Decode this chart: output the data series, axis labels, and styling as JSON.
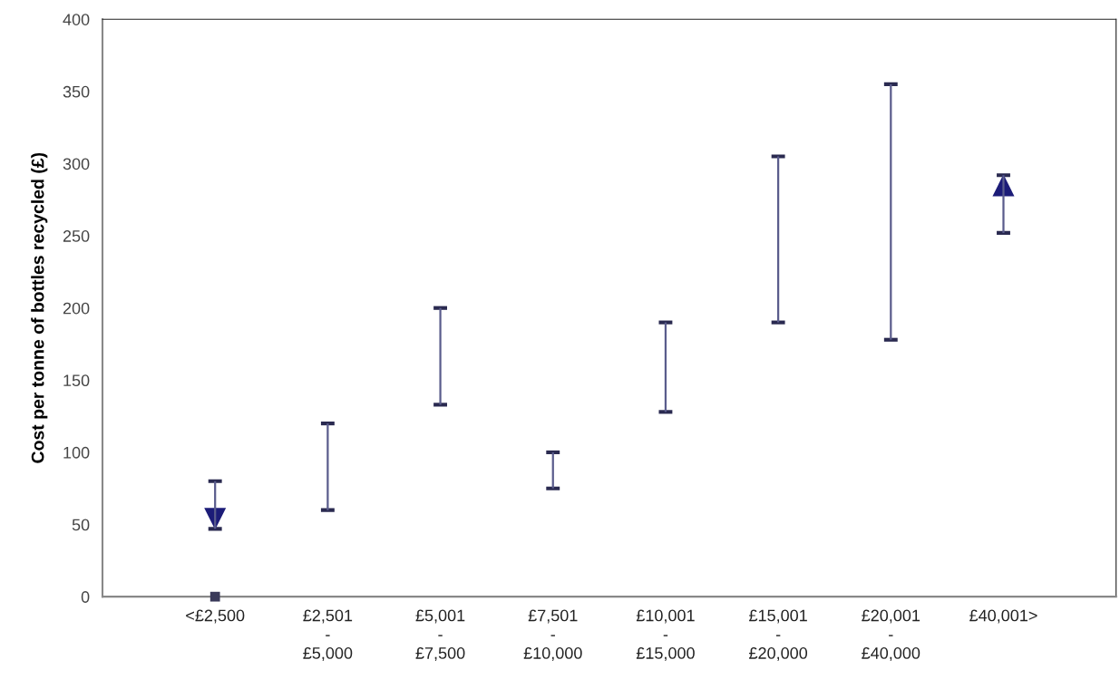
{
  "chart_data": {
    "type": "bar",
    "ylabel": "Cost per tonne of bottles recycled (£)",
    "categories": [
      "<£2,500",
      "£2,501\n-\n£5,000",
      "£5,001\n-\n£7,500",
      "£7,501\n-\n£10,000",
      "£10,001\n-\n£15,000",
      "£15,001\n-\n£20,000",
      "£20,001\n-\n£40,000",
      "£40,001>"
    ],
    "series": [
      {
        "color": "#5a5c8c",
        "base": [
          47,
          60,
          133,
          75,
          128,
          190,
          178,
          252
        ],
        "values": [
          33,
          60,
          67,
          25,
          62,
          115,
          177,
          40
        ]
      },
      {
        "type": "scatter",
        "color": "#1c1c78",
        "marker": "triangle",
        "values": [
          54,
          null,
          null,
          null,
          null,
          null,
          null,
          285
        ]
      },
      {
        "type": "scatter",
        "color": "#3a3a5a",
        "marker": "square",
        "values": [
          0,
          null,
          null,
          null,
          null,
          null,
          null,
          null
        ]
      }
    ],
    "ylim": [
      0,
      400
    ],
    "yticks": [
      0,
      50,
      100,
      150,
      200,
      250,
      300,
      350,
      400
    ],
    "grid": false,
    "legend": false
  }
}
